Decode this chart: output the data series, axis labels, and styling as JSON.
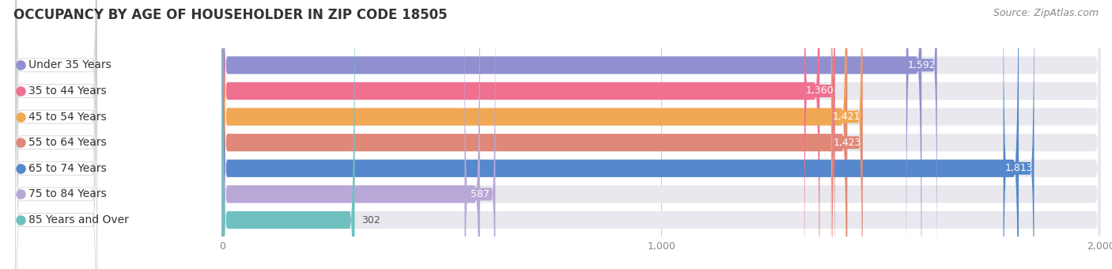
{
  "title": "OCCUPANCY BY AGE OF HOUSEHOLDER IN ZIP CODE 18505",
  "source": "Source: ZipAtlas.com",
  "categories": [
    "Under 35 Years",
    "35 to 44 Years",
    "45 to 54 Years",
    "55 to 64 Years",
    "65 to 74 Years",
    "75 to 84 Years",
    "85 Years and Over"
  ],
  "values": [
    1592,
    1360,
    1421,
    1423,
    1813,
    587,
    302
  ],
  "bar_colors": [
    "#9090d0",
    "#f07090",
    "#f0a855",
    "#e08878",
    "#5588cc",
    "#b8a8d8",
    "#70c0c0"
  ],
  "bar_bg_color": "#e8e8ee",
  "xlim_min": -480,
  "xlim_max": 2000,
  "xtick_vals": [
    0,
    1000,
    2000
  ],
  "background_color": "#ffffff",
  "bar_height": 0.68,
  "title_fontsize": 12,
  "source_fontsize": 9,
  "label_fontsize": 9,
  "category_fontsize": 10,
  "tick_fontsize": 9,
  "value_threshold": 500,
  "label_bg_color": "#ffffff",
  "value_label_color_inside": "#ffffff",
  "value_label_color_outside": "#555555",
  "category_label_color": "#333333"
}
